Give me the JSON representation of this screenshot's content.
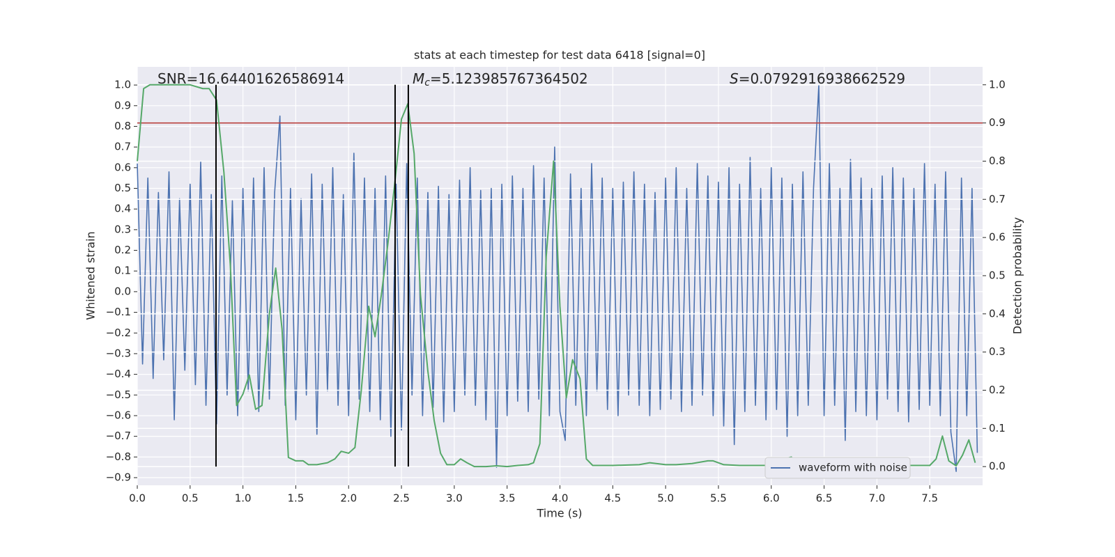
{
  "chart_data": {
    "type": "line",
    "title": "stats at each timestep for test data 6418 [signal=0]",
    "xlabel": "Time (s)",
    "ylabel": "Whitened strain",
    "y2label": "Detection probability",
    "xlim": [
      0,
      8.0
    ],
    "xticks": [
      {
        "value": 0,
        "label": "0.0"
      },
      0.5,
      {
        "value": 1,
        "label": "1.0"
      },
      1.5,
      {
        "value": 2,
        "label": "2.0"
      },
      2.5,
      {
        "value": 3,
        "label": "3.0"
      },
      3.5,
      {
        "value": 4,
        "label": "4.0"
      },
      4.5,
      {
        "value": 5,
        "label": "5.0"
      },
      5.5,
      {
        "value": 6,
        "label": "6.0"
      },
      6.5,
      {
        "value": 7,
        "label": "7.0"
      },
      7.5
    ],
    "ylim": [
      -0.937,
      1.088
    ],
    "yticks": [
      {
        "value": -0.9,
        "label": "−0.9"
      },
      {
        "value": -0.8,
        "label": "−0.8"
      },
      {
        "value": -0.7,
        "label": "−0.7"
      },
      {
        "value": -0.6,
        "label": "−0.6"
      },
      {
        "value": -0.5,
        "label": "−0.5"
      },
      {
        "value": -0.4,
        "label": "−0.4"
      },
      {
        "value": -0.3,
        "label": "−0.3"
      },
      {
        "value": -0.2,
        "label": "−0.2"
      },
      {
        "value": -0.1,
        "label": "−0.1"
      },
      {
        "value": 0,
        "label": "0.0"
      },
      0.1,
      0.2,
      0.3,
      0.4,
      0.5,
      0.6,
      0.7,
      0.8,
      0.9,
      {
        "value": 1,
        "label": "1.0"
      }
    ],
    "y2lim": [
      -0.049,
      1.047
    ],
    "y2ticks": [
      {
        "value": 0,
        "label": "0.0"
      },
      0.1,
      0.2,
      0.3,
      0.4,
      0.5,
      0.6,
      0.7,
      0.8,
      0.9,
      {
        "value": 1,
        "label": "1.0"
      }
    ],
    "grid": true,
    "legend": "lower right",
    "series": [
      {
        "name": "waveform with noise",
        "color": "#4c72b0",
        "in_legend": true,
        "x": [
          0,
          0.05,
          0.1,
          0.15,
          0.2,
          0.25,
          0.3,
          0.35,
          0.4,
          0.45,
          0.5,
          0.55,
          0.6,
          0.65,
          0.7,
          0.75,
          0.8,
          0.85,
          0.9,
          0.95,
          1,
          1.05,
          1.1,
          1.15,
          1.2,
          1.25,
          1.3,
          1.35,
          1.4,
          1.45,
          1.5,
          1.55,
          1.6,
          1.65,
          1.7,
          1.75,
          1.8,
          1.85,
          1.9,
          1.95,
          2,
          2.05,
          2.1,
          2.15,
          2.2,
          2.25,
          2.3,
          2.35,
          2.4,
          2.45,
          2.5,
          2.55,
          2.6,
          2.65,
          2.7,
          2.75,
          2.8,
          2.85,
          2.9,
          2.95,
          3,
          3.05,
          3.1,
          3.15,
          3.2,
          3.25,
          3.3,
          3.35,
          3.4,
          3.45,
          3.5,
          3.55,
          3.6,
          3.65,
          3.7,
          3.75,
          3.8,
          3.85,
          3.9,
          3.95,
          4,
          4.05,
          4.1,
          4.15,
          4.2,
          4.25,
          4.3,
          4.35,
          4.4,
          4.45,
          4.5,
          4.55,
          4.6,
          4.65,
          4.7,
          4.75,
          4.8,
          4.85,
          4.9,
          4.95,
          5,
          5.05,
          5.1,
          5.15,
          5.2,
          5.25,
          5.3,
          5.35,
          5.4,
          5.45,
          5.5,
          5.55,
          5.6,
          5.65,
          5.7,
          5.75,
          5.8,
          5.85,
          5.9,
          5.95,
          6,
          6.05,
          6.1,
          6.15,
          6.2,
          6.25,
          6.3,
          6.35,
          6.4,
          6.45,
          6.5,
          6.55,
          6.6,
          6.65,
          6.7,
          6.75,
          6.8,
          6.85,
          6.9,
          6.95,
          7,
          7.05,
          7.1,
          7.15,
          7.2,
          7.25,
          7.3,
          7.35,
          7.4,
          7.45,
          7.5,
          7.55,
          7.6,
          7.65,
          7.7,
          7.75,
          7.8,
          7.85,
          7.9,
          7.95
        ],
        "values": [
          0.62,
          -0.35,
          0.55,
          -0.42,
          0.48,
          -0.33,
          0.58,
          -0.62,
          0.45,
          -0.38,
          0.52,
          -0.45,
          0.63,
          -0.55,
          0.47,
          -0.64,
          0.56,
          -0.5,
          0.44,
          -0.6,
          0.5,
          -0.48,
          0.55,
          -0.58,
          0.6,
          -0.52,
          0.48,
          0.85,
          -0.55,
          0.5,
          -0.62,
          0.45,
          -0.5,
          0.57,
          -0.69,
          0.52,
          -0.48,
          0.6,
          -0.55,
          0.47,
          -0.6,
          0.67,
          -0.52,
          0.55,
          -0.58,
          0.5,
          -0.62,
          0.56,
          -0.7,
          0.52,
          -0.67,
          0.62,
          -0.5,
          0.55,
          -0.6,
          0.48,
          -0.56,
          0.51,
          -0.63,
          0.47,
          -0.58,
          0.54,
          -0.5,
          0.6,
          -0.55,
          0.49,
          -0.62,
          0.5,
          -0.85,
          0.52,
          -0.6,
          0.56,
          -0.53,
          0.5,
          -0.58,
          0.61,
          -0.52,
          0.55,
          -0.6,
          0.7,
          -0.58,
          -0.72,
          0.57,
          -0.55,
          0.5,
          -0.6,
          0.62,
          -0.48,
          0.55,
          -0.57,
          0.5,
          -0.6,
          0.53,
          -0.5,
          0.58,
          -0.55,
          0.52,
          -0.6,
          0.48,
          -0.57,
          0.55,
          -0.52,
          0.6,
          -0.58,
          0.5,
          -0.55,
          0.62,
          -0.5,
          0.56,
          -0.6,
          0.53,
          -0.65,
          0.6,
          -0.74,
          0.52,
          -0.58,
          0.65,
          -0.55,
          0.5,
          -0.62,
          0.6,
          -0.57,
          0.55,
          -0.7,
          0.52,
          -0.6,
          0.58,
          -0.55,
          0.5,
          1.0,
          -0.6,
          0.62,
          -0.55,
          0.5,
          -0.72,
          0.64,
          -0.58,
          0.55,
          -0.6,
          0.5,
          -0.62,
          0.56,
          -0.52,
          0.6,
          -0.58,
          0.55,
          -0.63,
          0.5,
          -0.57,
          0.62,
          -0.55,
          0.52,
          -0.6,
          0.58,
          -0.68,
          -0.87,
          0.55,
          -0.6,
          0.5,
          -0.78
        ]
      },
      {
        "color": "#55a868",
        "axis": "y2",
        "in_legend": false,
        "x": [
          0,
          0.06,
          0.12,
          0.5,
          0.62,
          0.68,
          0.75,
          0.82,
          0.88,
          0.94,
          1.0,
          1.06,
          1.12,
          1.18,
          1.25,
          1.31,
          1.37,
          1.43,
          1.5,
          1.57,
          1.62,
          1.7,
          1.8,
          1.87,
          1.93,
          2.0,
          2.06,
          2.12,
          2.19,
          2.25,
          2.31,
          2.37,
          2.44,
          2.5,
          2.56,
          2.62,
          2.68,
          2.75,
          2.81,
          2.87,
          2.93,
          3.0,
          3.06,
          3.12,
          3.19,
          3.3,
          3.4,
          3.5,
          3.6,
          3.7,
          3.75,
          3.81,
          3.87,
          3.94,
          4.0,
          4.06,
          4.12,
          4.19,
          4.25,
          4.31,
          4.5,
          4.75,
          4.85,
          5.0,
          5.1,
          5.25,
          5.4,
          5.45,
          5.55,
          5.7,
          6.0,
          6.06,
          6.12,
          6.19,
          6.25,
          6.31,
          6.37,
          6.44,
          6.5,
          6.7,
          6.87,
          7.0,
          7.25,
          7.5,
          7.56,
          7.62,
          7.68,
          7.75,
          7.81,
          7.87,
          7.93
        ],
        "values": [
          0.8,
          0.99,
          1.0,
          1.0,
          0.99,
          0.99,
          0.96,
          0.77,
          0.53,
          0.16,
          0.19,
          0.24,
          0.15,
          0.16,
          0.4,
          0.52,
          0.36,
          0.024,
          0.015,
          0.015,
          0.005,
          0.005,
          0.01,
          0.02,
          0.04,
          0.035,
          0.05,
          0.2,
          0.42,
          0.34,
          0.45,
          0.58,
          0.75,
          0.91,
          0.95,
          0.82,
          0.45,
          0.25,
          0.12,
          0.035,
          0.005,
          0.005,
          0.02,
          0.01,
          0.0,
          0.0,
          0.002,
          0.0,
          0.003,
          0.005,
          0.01,
          0.06,
          0.55,
          0.8,
          0.42,
          0.18,
          0.28,
          0.23,
          0.02,
          0.003,
          0.003,
          0.005,
          0.01,
          0.005,
          0.005,
          0.008,
          0.015,
          0.015,
          0.005,
          0.003,
          0.003,
          0.01,
          0.02,
          0.025,
          0.005,
          0.01,
          0.005,
          0.015,
          0.01,
          0.002,
          0.005,
          0.002,
          0.003,
          0.003,
          0.02,
          0.08,
          0.015,
          0.002,
          0.03,
          0.07,
          0.01
        ]
      }
    ],
    "hline": {
      "value": 0.9,
      "axis": "y2",
      "color": "#b5322f"
    },
    "vlines": {
      "x": [
        0.745,
        2.44,
        2.565
      ],
      "color": "#000000"
    },
    "annotations": [
      {
        "text": "SNR=16.64401626586914"
      },
      {
        "symbol": "M",
        "subscript": "c",
        "text": "=5.123985767364502"
      },
      {
        "symbol": "S",
        "text": "=0.0792916938662529"
      }
    ]
  }
}
